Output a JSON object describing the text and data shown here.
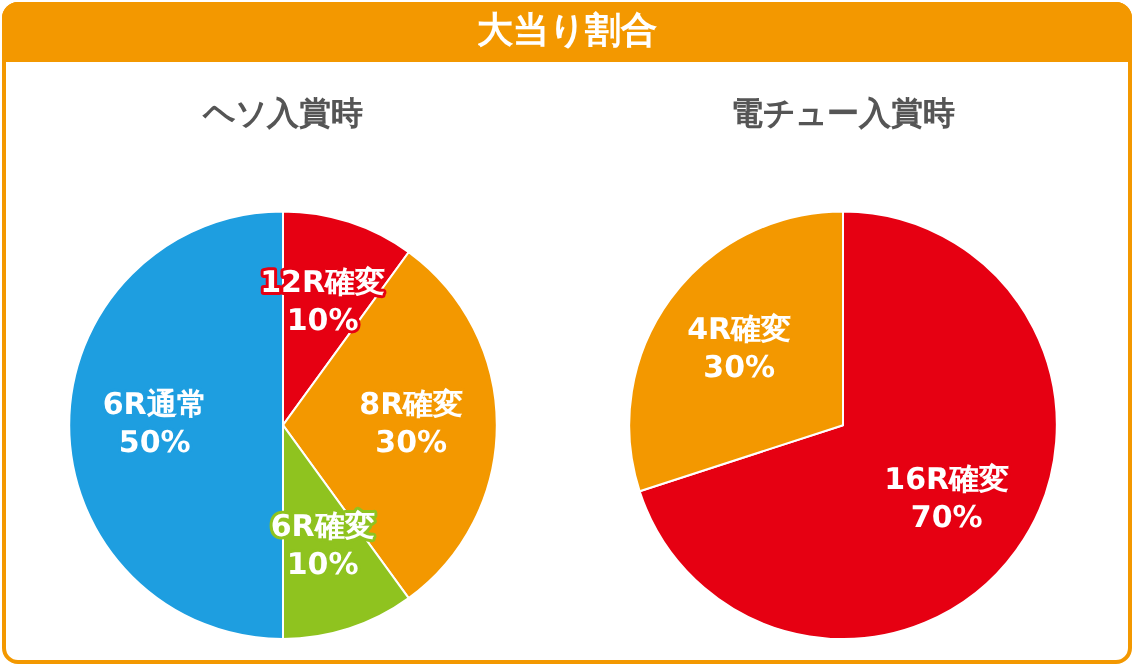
{
  "chart_data": [
    {
      "type": "other",
      "title": "大当り割合"
    },
    {
      "type": "pie",
      "title": "ヘソ入賞時",
      "categories": [
        "12R確変",
        "8R確変",
        "6R確変",
        "6R通常"
      ],
      "values": [
        10,
        30,
        10,
        50
      ],
      "colors": [
        "#e60012",
        "#f39800",
        "#8fc31f",
        "#1e9ee0"
      ],
      "value_labels": [
        "10%",
        "30%",
        "10%",
        "50%"
      ],
      "legend": false
    },
    {
      "type": "pie",
      "title": "電チュー入賞時",
      "categories": [
        "16R確変",
        "4R確変"
      ],
      "values": [
        70,
        30
      ],
      "colors": [
        "#e60012",
        "#f39800"
      ],
      "value_labels": [
        "70%",
        "30%"
      ],
      "legend": false
    }
  ]
}
